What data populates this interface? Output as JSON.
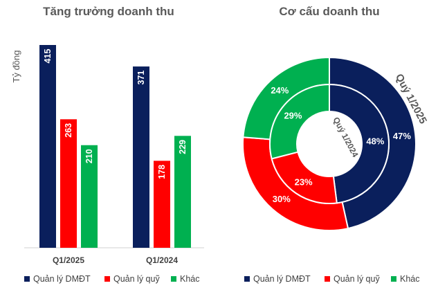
{
  "chart_data": [
    {
      "type": "bar",
      "title": "Tăng trưởng doanh thu",
      "ylabel": "Tỷ đồng",
      "categories": [
        "Q1/2025",
        "Q1/2024"
      ],
      "series": [
        {
          "name": "Quản lý DMĐT",
          "color": "#0a1f5c",
          "values": [
            415,
            371
          ]
        },
        {
          "name": "Quản lý quỹ",
          "color": "#ff0000",
          "values": [
            263,
            178
          ]
        },
        {
          "name": "Khác",
          "color": "#00b050",
          "values": [
            210,
            229
          ]
        }
      ],
      "ylim": [
        0,
        415
      ],
      "grid": false,
      "legend": "bottom"
    },
    {
      "type": "pie",
      "title": "Cơ cấu doanh thu",
      "rings": [
        {
          "name": "Quý 1/2025",
          "position": "outer",
          "values": [
            47,
            30,
            24
          ],
          "labels": [
            "47%",
            "30%",
            "24%"
          ]
        },
        {
          "name": "Quý 1/2024",
          "position": "inner",
          "values": [
            48,
            23,
            29
          ],
          "labels": [
            "48%",
            "23%",
            "29%"
          ]
        }
      ],
      "categories": [
        {
          "name": "Quản lý DMĐT",
          "color": "#0a1f5c"
        },
        {
          "name": "Quản lý quỹ",
          "color": "#ff0000"
        },
        {
          "name": "Khác",
          "color": "#00b050"
        }
      ],
      "legend": "bottom"
    }
  ]
}
